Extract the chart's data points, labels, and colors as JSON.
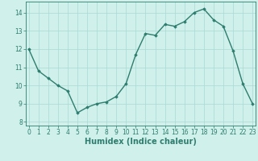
{
  "x": [
    0,
    1,
    2,
    3,
    4,
    5,
    6,
    7,
    8,
    9,
    10,
    11,
    12,
    13,
    14,
    15,
    16,
    17,
    18,
    19,
    20,
    21,
    22,
    23
  ],
  "y": [
    12.0,
    10.8,
    10.4,
    10.0,
    9.7,
    8.5,
    8.8,
    9.0,
    9.1,
    9.4,
    10.1,
    11.7,
    12.85,
    12.75,
    13.35,
    13.25,
    13.5,
    14.0,
    14.2,
    13.6,
    13.25,
    11.9,
    10.1,
    9.0
  ],
  "line_color": "#2e7d6e",
  "marker": "D",
  "marker_size": 1.8,
  "bg_color": "#cff0eb",
  "grid_color": "#aad8d3",
  "xlabel": "Humidex (Indice chaleur)",
  "ylim": [
    7.8,
    14.6
  ],
  "yticks": [
    8,
    9,
    10,
    11,
    12,
    13,
    14
  ],
  "xticks": [
    0,
    1,
    2,
    3,
    4,
    5,
    6,
    7,
    8,
    9,
    10,
    11,
    12,
    13,
    14,
    15,
    16,
    17,
    18,
    19,
    20,
    21,
    22,
    23
  ],
  "xlim": [
    -0.3,
    23.3
  ],
  "tick_labelsize": 5.5,
  "xlabel_fontsize": 7.0,
  "linewidth": 1.0
}
